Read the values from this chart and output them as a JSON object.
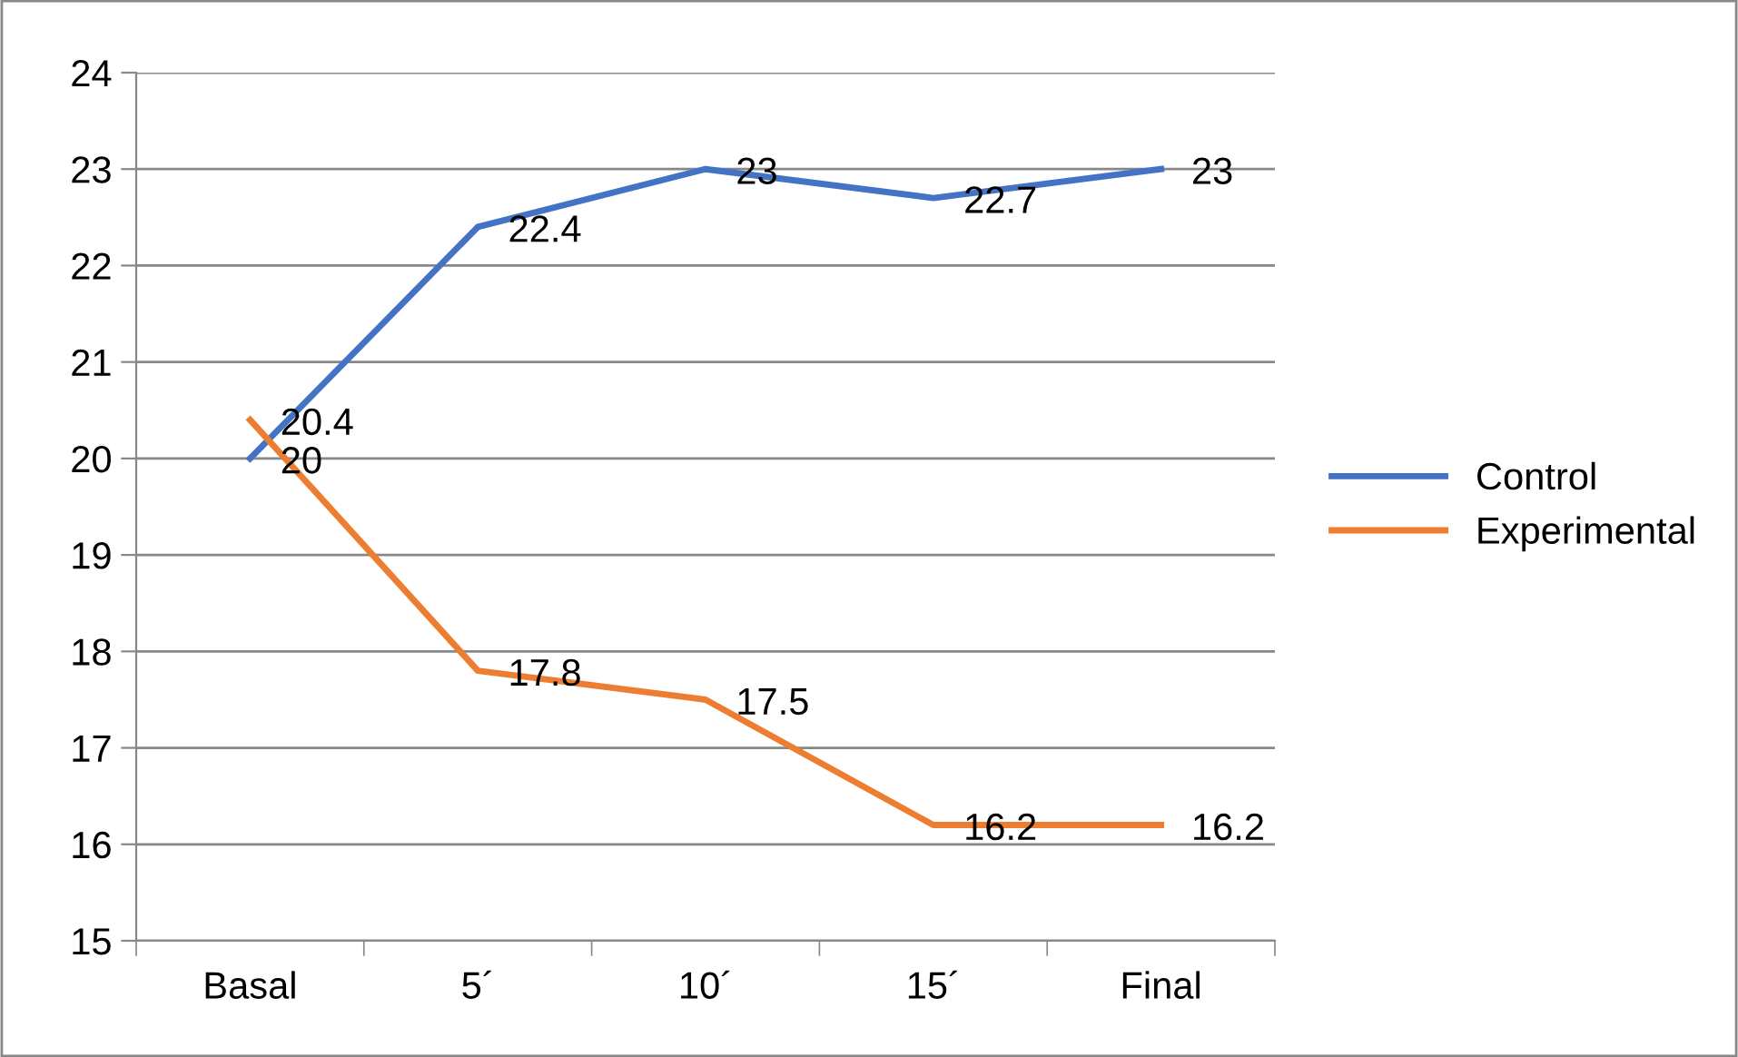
{
  "chart_data": {
    "type": "line",
    "categories": [
      "Basal",
      "5´",
      "10´",
      "15´",
      "Final"
    ],
    "series": [
      {
        "name": "Control",
        "color": "#4472c4",
        "values": [
          20,
          22.4,
          23,
          22.7,
          23
        ]
      },
      {
        "name": "Experimental",
        "color": "#ed7d31",
        "values": [
          20.4,
          17.8,
          17.5,
          16.2,
          16.2
        ]
      }
    ],
    "ylim": [
      15,
      24
    ],
    "yticks": [
      15,
      16,
      17,
      18,
      19,
      20,
      21,
      22,
      23,
      24
    ],
    "grid": "y",
    "legend": "right",
    "data_labels": true,
    "marker": "none",
    "line_style": "solid"
  }
}
